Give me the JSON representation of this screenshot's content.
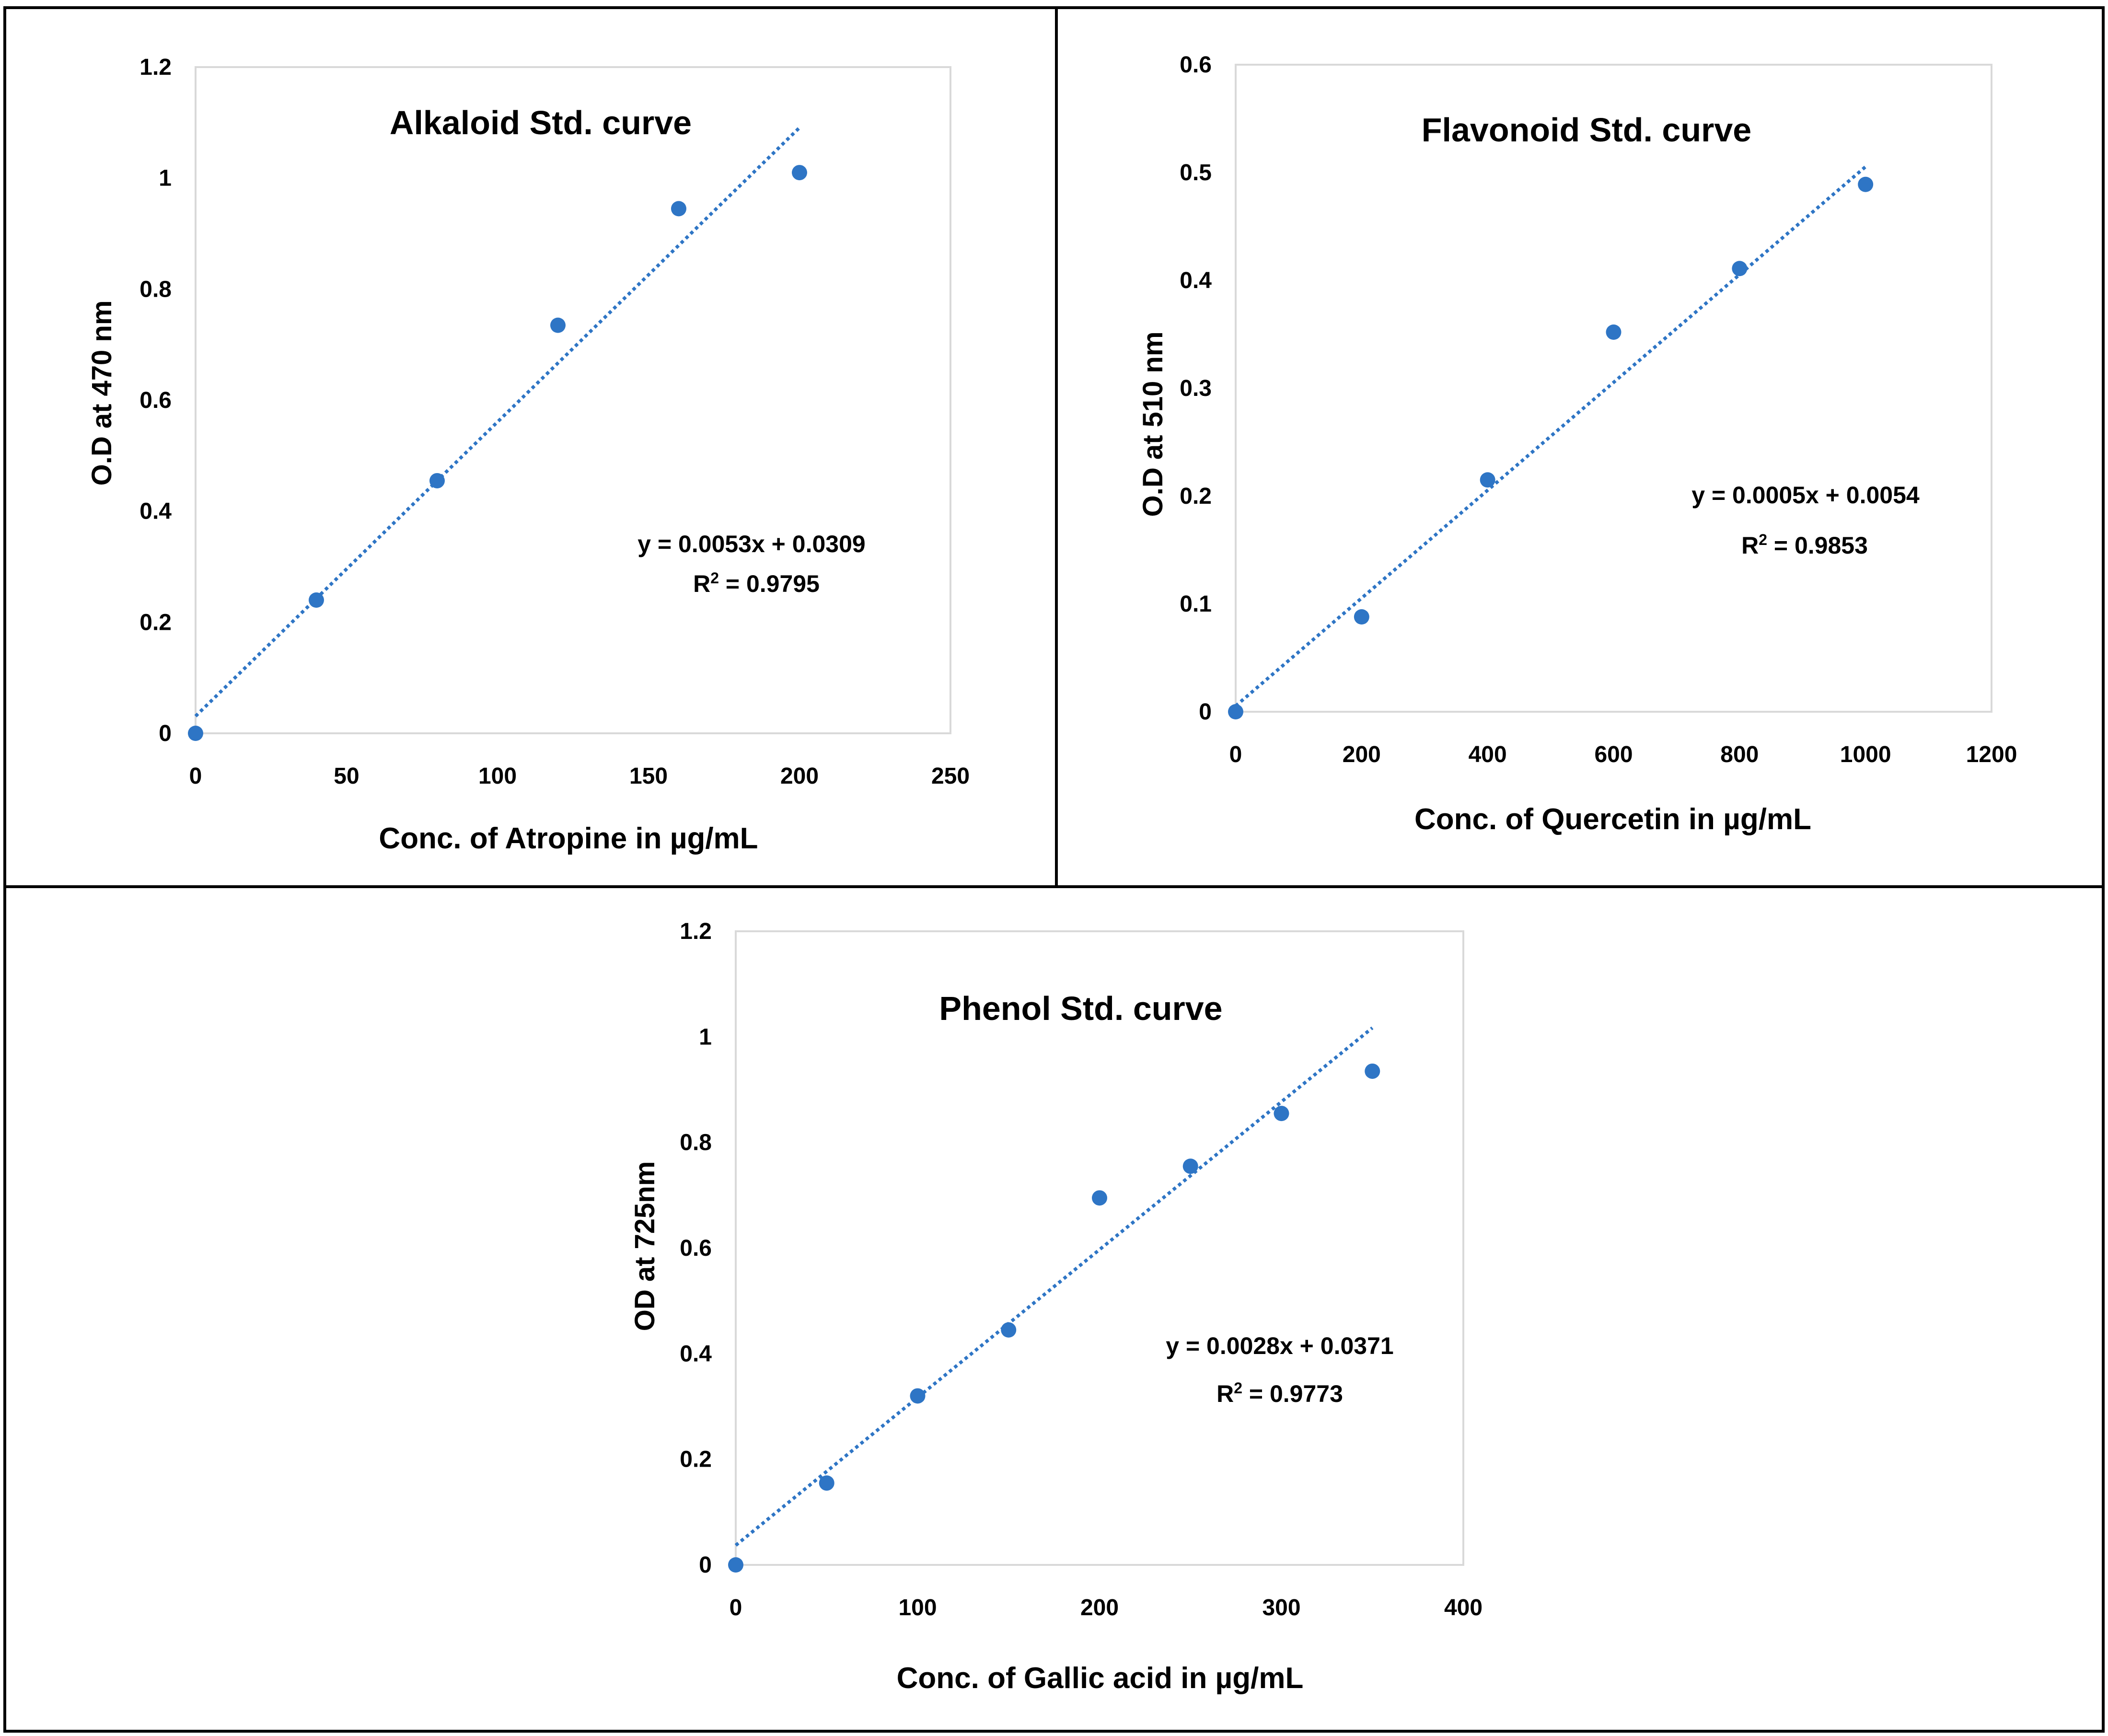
{
  "colors": {
    "series": "#2e75c5",
    "frame": "#000000",
    "plot_border": "#d9d9d9",
    "text": "#000000"
  },
  "chart_data": [
    {
      "id": "alkaloid",
      "type": "scatter",
      "title": "Alkaloid Std. curve",
      "xlabel": "Conc. of Atropine in µg/mL",
      "ylabel": "O.D at 470 nm",
      "xlim": [
        0,
        250
      ],
      "ylim": [
        0,
        1.2
      ],
      "xticks": [
        0,
        50,
        100,
        150,
        200,
        250
      ],
      "yticks": [
        0,
        0.2,
        0.4,
        0.6,
        0.8,
        1,
        1.2
      ],
      "x": [
        0,
        40,
        80,
        120,
        160,
        200
      ],
      "y": [
        0,
        0.24,
        0.455,
        0.735,
        0.945,
        1.01
      ],
      "trendline": {
        "slope": 0.0053,
        "intercept": 0.0309,
        "x_range": [
          0,
          200
        ]
      },
      "equation": "y = 0.0053x + 0.0309",
      "r2_label": "R",
      "r2_sup": "2",
      "r2_value": " = 0.9795"
    },
    {
      "id": "flavonoid",
      "type": "scatter",
      "title": "Flavonoid Std. curve",
      "xlabel": "Conc. of Quercetin in µg/mL",
      "ylabel": "O.D at 510 nm",
      "xlim": [
        0,
        1200
      ],
      "ylim": [
        0,
        0.6
      ],
      "xticks": [
        0,
        200,
        400,
        600,
        800,
        1000,
        1200
      ],
      "yticks": [
        0,
        0.1,
        0.2,
        0.3,
        0.4,
        0.5,
        0.6
      ],
      "x": [
        0,
        200,
        400,
        600,
        800,
        1000
      ],
      "y": [
        0,
        0.088,
        0.215,
        0.352,
        0.411,
        0.489
      ],
      "trendline": {
        "slope": 0.0005,
        "intercept": 0.0054,
        "x_range": [
          0,
          1000
        ]
      },
      "equation": "y = 0.0005x + 0.0054",
      "r2_label": "R",
      "r2_sup": "2",
      "r2_value": " = 0.9853"
    },
    {
      "id": "phenol",
      "type": "scatter",
      "title": "Phenol Std. curve",
      "xlabel": "Conc. of Gallic acid in µg/mL",
      "ylabel": "OD at 725nm",
      "xlim": [
        0,
        400
      ],
      "ylim": [
        0,
        1.2
      ],
      "xticks": [
        0,
        100,
        200,
        300,
        400
      ],
      "yticks": [
        0,
        0.2,
        0.4,
        0.6,
        0.8,
        1,
        1.2
      ],
      "x": [
        0,
        50,
        100,
        150,
        200,
        250,
        300,
        350
      ],
      "y": [
        0,
        0.155,
        0.32,
        0.445,
        0.695,
        0.755,
        0.855,
        0.935
      ],
      "trendline": {
        "slope": 0.0028,
        "intercept": 0.0371,
        "x_range": [
          0,
          350
        ]
      },
      "equation": "y = 0.0028x + 0.0371",
      "r2_label": "R",
      "r2_sup": "2",
      "r2_value": " = 0.9773"
    }
  ]
}
